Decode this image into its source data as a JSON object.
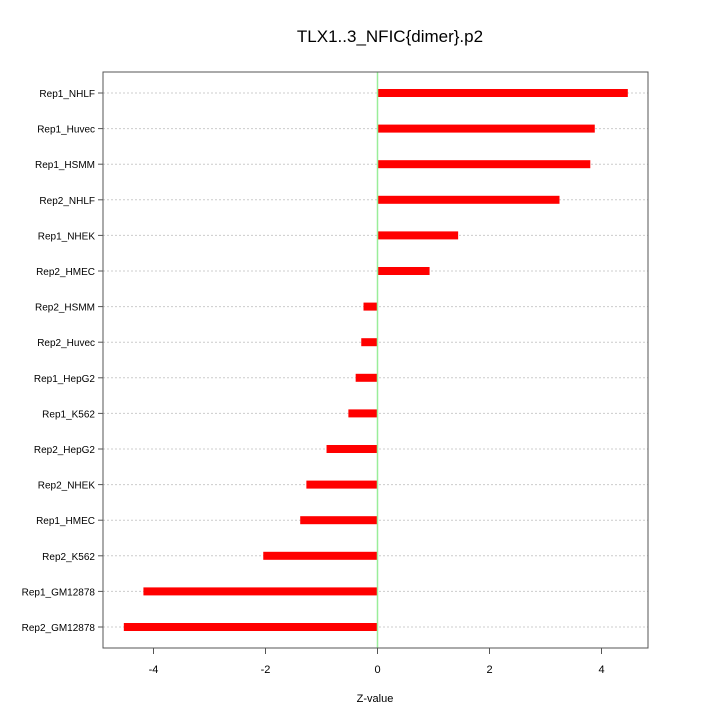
{
  "chart_data": {
    "type": "bar",
    "orientation": "horizontal",
    "title": "TLX1..3_NFIC{dimer}.p2",
    "xlabel": "Z-value",
    "ylabel": "",
    "xlim": [
      -4.9,
      4.9
    ],
    "xticks": [
      -4,
      -2,
      0,
      2,
      4
    ],
    "xtick_labels": [
      "-4",
      "-2",
      "0",
      "2",
      "4"
    ],
    "grid": "horizontal dotted",
    "categories": [
      "Rep1_NHLF",
      "Rep1_Huvec",
      "Rep1_HSMM",
      "Rep2_NHLF",
      "Rep1_NHEK",
      "Rep2_HMEC",
      "Rep2_HSMM",
      "Rep2_Huvec",
      "Rep1_HepG2",
      "Rep1_K562",
      "Rep2_HepG2",
      "Rep2_NHEK",
      "Rep1_HMEC",
      "Rep2_K562",
      "Rep1_GM12878",
      "Rep2_GM12878"
    ],
    "values": [
      4.47,
      3.88,
      3.8,
      3.25,
      1.44,
      0.93,
      -0.25,
      -0.29,
      -0.39,
      -0.52,
      -0.91,
      -1.27,
      -1.38,
      -2.04,
      -4.18,
      -4.53
    ],
    "colors": {
      "bar": "#ff0000",
      "zero_line": "#99ee99",
      "grid": "#cccccc"
    }
  }
}
